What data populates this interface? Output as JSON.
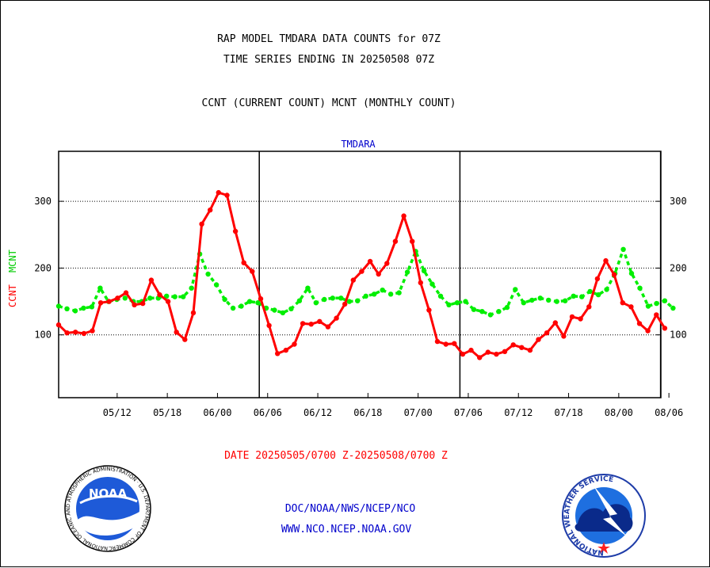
{
  "header": {
    "title_line1": "RAP MODEL TMDARA DATA COUNTS for 07Z",
    "title_line2": "TIME SERIES ENDING IN 20250508 07Z",
    "subtitle": "CCNT (CURRENT COUNT) MCNT (MONTHLY COUNT)"
  },
  "footer": {
    "date_range": "DATE 20250505/0700 Z-20250508/0700 Z",
    "org_line": "DOC/NOAA/NWS/NCEP/NCO",
    "url_line": "WWW.NCO.NCEP.NOAA.GOV"
  },
  "logos": {
    "noaa_text": "NOAA",
    "noaa_ring": "NATIONAL OCEANIC AND ATMOSPHERIC ADMINISTRATION · U.S. DEPARTMENT OF COMMERCE ·",
    "nws_ring": "NATIONAL WEATHER SERVICE"
  },
  "colors": {
    "ccnt": "#ff0000",
    "mcnt": "#00ee00",
    "axis": "#000000",
    "plot_title": "#0000cc",
    "footer_red": "#ff0000",
    "footer_blue": "#0000cc"
  },
  "chart_data": {
    "type": "line",
    "title": "TMDARA",
    "ylabel_ccnt": "CCNT",
    "ylabel_mcnt": "MCNT",
    "ylim": [
      0,
      370
    ],
    "yticks": [
      100,
      200,
      300
    ],
    "ytick_labels": [
      "100",
      "200",
      "300"
    ],
    "xticks": [
      {
        "x": 7,
        "label": "05/12"
      },
      {
        "x": 13,
        "label": "05/18"
      },
      {
        "x": 19,
        "label": "06/00"
      },
      {
        "x": 25,
        "label": "06/06"
      },
      {
        "x": 31,
        "label": "06/12"
      },
      {
        "x": 37,
        "label": "06/18"
      },
      {
        "x": 43,
        "label": "07/00"
      },
      {
        "x": 49,
        "label": "07/06"
      },
      {
        "x": 55,
        "label": "07/12"
      },
      {
        "x": 61,
        "label": "07/18"
      },
      {
        "x": 67,
        "label": "08/00"
      },
      {
        "x": 73,
        "label": "08/06"
      }
    ],
    "xlim": [
      0,
      73.7
    ],
    "day_boundaries": [
      24,
      48,
      72
    ],
    "grid": "horizontal dotted",
    "series": [
      {
        "name": "CCNT",
        "values": [
          115,
          103,
          104,
          102,
          106,
          148,
          150,
          155,
          163,
          145,
          147,
          182,
          160,
          150,
          104,
          93,
          133,
          266,
          287,
          313,
          309,
          255,
          208,
          195,
          154,
          114,
          72,
          77,
          86,
          117,
          116,
          120,
          112,
          125,
          146,
          182,
          195,
          210,
          191,
          207,
          240,
          278,
          240,
          178,
          137,
          90,
          86,
          87,
          71,
          77,
          66,
          74,
          71,
          75,
          85,
          81,
          77,
          93,
          103,
          118,
          98,
          127,
          124,
          142,
          184,
          211,
          190,
          148,
          142,
          117,
          106,
          130,
          110
        ],
        "x_end": 72.5
      },
      {
        "name": "MCNT",
        "values": [
          143,
          139,
          136,
          140,
          142,
          170,
          150,
          153,
          155,
          150,
          150,
          155,
          155,
          158,
          157,
          157,
          170,
          221,
          191,
          175,
          153,
          140,
          143,
          150,
          148,
          140,
          137,
          133,
          139,
          151,
          170,
          148,
          153,
          155,
          155,
          150,
          151,
          158,
          161,
          167,
          161,
          163,
          194,
          225,
          196,
          176,
          158,
          145,
          148,
          150,
          138,
          135,
          130,
          135,
          141,
          168,
          148,
          152,
          155,
          152,
          150,
          151,
          158,
          157,
          165,
          160,
          168,
          192,
          228,
          192,
          170,
          143,
          147,
          151,
          140
        ],
        "x_end": 73.5
      }
    ]
  }
}
